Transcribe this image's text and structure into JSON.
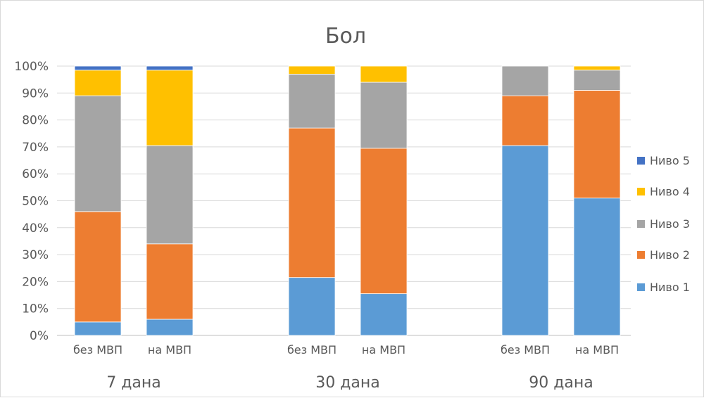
{
  "chart_data": {
    "type": "bar",
    "stacked": true,
    "title": "Бол",
    "y_ticks": [
      "0%",
      "10%",
      "20%",
      "30%",
      "40%",
      "50%",
      "60%",
      "70%",
      "80%",
      "90%",
      "100%"
    ],
    "ylim": [
      0,
      100
    ],
    "grid": true,
    "legend_position": "right",
    "groups": [
      {
        "label": "7 дана",
        "categories": [
          "без МВП",
          "на МВП"
        ]
      },
      {
        "label": "30 дана",
        "categories": [
          "без МВП",
          "на МВП"
        ]
      },
      {
        "label": "90 дана",
        "categories": [
          "без МВП",
          "на МВП"
        ]
      }
    ],
    "categories": [
      "без МВП",
      "на МВП",
      "без МВП",
      "на МВП",
      "без МВП",
      "на МВП"
    ],
    "series": [
      {
        "name": "Ниво 1",
        "color": "#5b9bd5",
        "values": [
          5,
          6,
          21.5,
          15.5,
          70.5,
          51
        ]
      },
      {
        "name": "Ниво 2",
        "color": "#ed7d31",
        "values": [
          41,
          28,
          55.5,
          54,
          18.5,
          40
        ]
      },
      {
        "name": "Ниво 3",
        "color": "#a5a5a5",
        "values": [
          43,
          36.5,
          20,
          24.5,
          11,
          7.5
        ]
      },
      {
        "name": "Ниво 4",
        "color": "#ffc000",
        "values": [
          9.5,
          28,
          3,
          6,
          0,
          1.5
        ]
      },
      {
        "name": "Ниво 5",
        "color": "#4472c4",
        "values": [
          1.5,
          1.5,
          0,
          0,
          0,
          0
        ]
      }
    ]
  }
}
